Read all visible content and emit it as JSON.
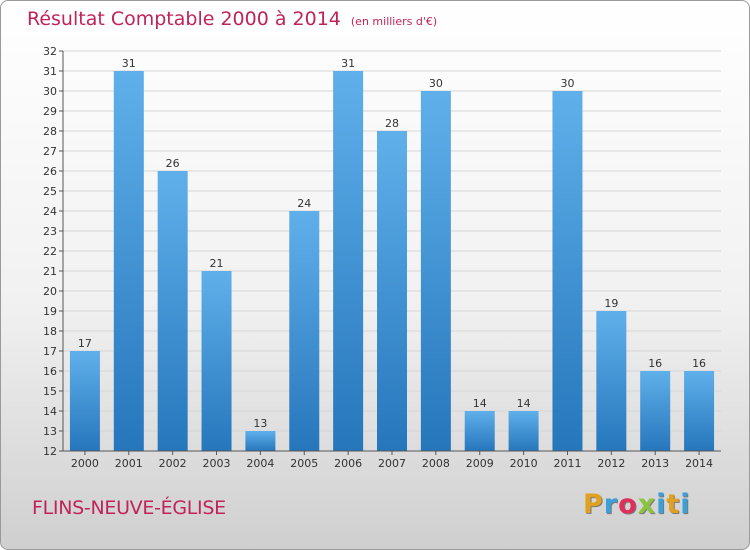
{
  "title": "Résultat Comptable 2000 à 2014",
  "unit": "(en milliers d'€)",
  "place": "FLINS-NEUVE-ÉGLISE",
  "logo": {
    "letters": [
      "P",
      "r",
      "o",
      "x",
      "i",
      "t",
      "i"
    ],
    "colors": [
      "#e0a020",
      "#3aa0d8",
      "#e0305a",
      "#8bc43f",
      "#3aa0d8",
      "#e0a020",
      "#3aa0d8"
    ]
  },
  "colors": {
    "bar_top": "#5fb0ea",
    "bar_bottom": "#2676bc",
    "accent": "#c0235a"
  },
  "chart_data": {
    "type": "bar",
    "categories": [
      "2000",
      "2001",
      "2002",
      "2003",
      "2004",
      "2005",
      "2006",
      "2007",
      "2008",
      "2009",
      "2010",
      "2011",
      "2012",
      "2013",
      "2014"
    ],
    "values": [
      17,
      31,
      26,
      21,
      13,
      24,
      31,
      28,
      30,
      14,
      14,
      30,
      19,
      16,
      16
    ],
    "ylim": [
      12,
      32
    ],
    "yticks": [
      12,
      13,
      14,
      15,
      16,
      17,
      18,
      19,
      20,
      21,
      22,
      23,
      24,
      25,
      26,
      27,
      28,
      29,
      30,
      31,
      32
    ],
    "grid": true,
    "data_labels": true
  }
}
